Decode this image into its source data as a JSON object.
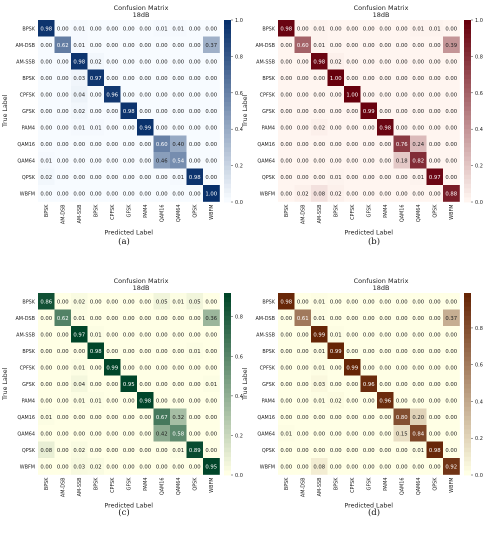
{
  "chart_data": [
    {
      "type": "heatmap",
      "panel_label": "(a)",
      "title": "Confusion Matrix",
      "subtitle": "18dB",
      "xlabel": "Predicted Label",
      "ylabel": "True Label",
      "colormap": "Blues",
      "low_color": "#f7fbff",
      "high_color": "#08306b",
      "colorbar_ticks": [
        "0.0",
        "0.2",
        "0.4",
        "0.6",
        "0.8",
        "1.0"
      ],
      "colorbar_range": [
        0,
        1
      ],
      "labels": [
        "BPSK",
        "AM-DSB",
        "AM-SSB",
        "BPSK",
        "CPFSK",
        "GFSK",
        "PAM4",
        "QAM16",
        "QAM64",
        "QPSK",
        "WBFM"
      ],
      "values": [
        [
          "0.98",
          "0.00",
          "0.01",
          "0.00",
          "0.00",
          "0.00",
          "0.00",
          "0.01",
          "0.01",
          "0.00",
          "0.00"
        ],
        [
          "0.00",
          "0.62",
          "0.01",
          "0.00",
          "0.00",
          "0.00",
          "0.00",
          "0.00",
          "0.00",
          "0.00",
          "0.37"
        ],
        [
          "0.00",
          "0.00",
          "0.98",
          "0.02",
          "0.00",
          "0.00",
          "0.00",
          "0.00",
          "0.00",
          "0.00",
          "0.00"
        ],
        [
          "0.00",
          "0.00",
          "0.03",
          "0.97",
          "0.00",
          "0.00",
          "0.00",
          "0.00",
          "0.00",
          "0.00",
          "0.00"
        ],
        [
          "0.00",
          "0.00",
          "0.04",
          "0.00",
          "0.96",
          "0.00",
          "0.00",
          "0.00",
          "0.00",
          "0.00",
          "0.00"
        ],
        [
          "0.00",
          "0.00",
          "0.02",
          "0.00",
          "0.00",
          "0.98",
          "0.00",
          "0.00",
          "0.00",
          "0.00",
          "0.00"
        ],
        [
          "0.00",
          "0.00",
          "0.01",
          "0.01",
          "0.00",
          "0.00",
          "0.99",
          "0.00",
          "0.00",
          "0.00",
          "0.00"
        ],
        [
          "0.00",
          "0.00",
          "0.00",
          "0.00",
          "0.00",
          "0.00",
          "0.00",
          "0.60",
          "0.40",
          "0.00",
          "0.00"
        ],
        [
          "0.01",
          "0.00",
          "0.00",
          "0.00",
          "0.00",
          "0.00",
          "0.00",
          "0.46",
          "0.54",
          "0.00",
          "0.00"
        ],
        [
          "0.02",
          "0.00",
          "0.00",
          "0.00",
          "0.00",
          "0.00",
          "0.00",
          "0.00",
          "0.01",
          "0.98",
          "0.00"
        ],
        [
          "0.00",
          "0.00",
          "0.00",
          "0.00",
          "0.00",
          "0.00",
          "0.00",
          "0.00",
          "0.00",
          "0.00",
          "1.00"
        ]
      ]
    },
    {
      "type": "heatmap",
      "panel_label": "(b)",
      "title": "Confusion Matrix",
      "subtitle": "18dB",
      "xlabel": "Predicted Label",
      "ylabel": "True Label",
      "colormap": "Reds",
      "low_color": "#fff5f0",
      "high_color": "#67000d",
      "colorbar_ticks": [
        "0.0",
        "0.2",
        "0.4",
        "0.6",
        "0.8",
        "1.0"
      ],
      "colorbar_range": [
        0,
        1
      ],
      "labels": [
        "BPSK",
        "AM-DSB",
        "AM-SSB",
        "BPSK",
        "CPFSK",
        "GFSK",
        "PAM4",
        "QAM16",
        "QAM64",
        "QPSK",
        "WBFM"
      ],
      "values": [
        [
          "0.98",
          "0.00",
          "0.01",
          "0.00",
          "0.00",
          "0.00",
          "0.00",
          "0.00",
          "0.01",
          "0.01",
          "0.00"
        ],
        [
          "0.00",
          "0.60",
          "0.01",
          "0.00",
          "0.00",
          "0.00",
          "0.00",
          "0.00",
          "0.00",
          "0.00",
          "0.39"
        ],
        [
          "0.00",
          "0.00",
          "0.98",
          "0.02",
          "0.00",
          "0.00",
          "0.00",
          "0.00",
          "0.00",
          "0.00",
          "0.00"
        ],
        [
          "0.00",
          "0.00",
          "0.00",
          "1.00",
          "0.00",
          "0.00",
          "0.00",
          "0.00",
          "0.00",
          "0.00",
          "0.00"
        ],
        [
          "0.00",
          "0.00",
          "0.00",
          "0.00",
          "1.00",
          "0.00",
          "0.00",
          "0.00",
          "0.00",
          "0.00",
          "0.00"
        ],
        [
          "0.00",
          "0.00",
          "0.00",
          "0.00",
          "0.00",
          "0.99",
          "0.00",
          "0.00",
          "0.00",
          "0.00",
          "0.00"
        ],
        [
          "0.00",
          "0.00",
          "0.02",
          "0.00",
          "0.00",
          "0.00",
          "0.98",
          "0.00",
          "0.00",
          "0.00",
          "0.00"
        ],
        [
          "0.00",
          "0.00",
          "0.00",
          "0.00",
          "0.00",
          "0.00",
          "0.00",
          "0.76",
          "0.24",
          "0.00",
          "0.00"
        ],
        [
          "0.00",
          "0.00",
          "0.00",
          "0.00",
          "0.00",
          "0.00",
          "0.00",
          "0.18",
          "0.82",
          "0.00",
          "0.00"
        ],
        [
          "0.00",
          "0.00",
          "0.00",
          "0.01",
          "0.00",
          "0.00",
          "0.00",
          "0.00",
          "0.01",
          "0.97",
          "0.00"
        ],
        [
          "0.00",
          "0.02",
          "0.08",
          "0.02",
          "0.00",
          "0.00",
          "0.00",
          "0.00",
          "0.00",
          "0.00",
          "0.88"
        ]
      ]
    },
    {
      "type": "heatmap",
      "panel_label": "(c)",
      "title": "Confusion Matrix",
      "subtitle": "18dB",
      "xlabel": "Predicted Label",
      "ylabel": "True Label",
      "colormap": "YlGn",
      "low_color": "#ffffe5",
      "high_color": "#004529",
      "colorbar_ticks": [
        "0.0",
        "0.2",
        "0.4",
        "0.6",
        "0.8"
      ],
      "colorbar_range": [
        0,
        0.92
      ],
      "labels": [
        "BPSK",
        "AM-DSB",
        "AM-SSB",
        "BPSK",
        "CPFSK",
        "GFSK",
        "PAM4",
        "QAM16",
        "QAM64",
        "QPSK",
        "WBFM"
      ],
      "values": [
        [
          "0.86",
          "0.00",
          "0.02",
          "0.00",
          "0.00",
          "0.00",
          "0.00",
          "0.05",
          "0.01",
          "0.05",
          "0.00"
        ],
        [
          "0.00",
          "0.62",
          "0.01",
          "0.00",
          "0.00",
          "0.00",
          "0.00",
          "0.00",
          "0.00",
          "0.00",
          "0.36"
        ],
        [
          "0.00",
          "0.00",
          "0.97",
          "0.01",
          "0.00",
          "0.00",
          "0.00",
          "0.00",
          "0.00",
          "0.00",
          "0.00"
        ],
        [
          "0.00",
          "0.00",
          "0.00",
          "0.98",
          "0.00",
          "0.00",
          "0.00",
          "0.00",
          "0.00",
          "0.01",
          "0.00"
        ],
        [
          "0.00",
          "0.00",
          "0.01",
          "0.00",
          "0.99",
          "0.00",
          "0.00",
          "0.00",
          "0.00",
          "0.00",
          "0.00"
        ],
        [
          "0.00",
          "0.00",
          "0.04",
          "0.00",
          "0.00",
          "0.95",
          "0.00",
          "0.00",
          "0.00",
          "0.00",
          "0.01"
        ],
        [
          "0.00",
          "0.00",
          "0.01",
          "0.01",
          "0.00",
          "0.00",
          "0.98",
          "0.00",
          "0.00",
          "0.00",
          "0.00"
        ],
        [
          "0.01",
          "0.00",
          "0.00",
          "0.00",
          "0.00",
          "0.00",
          "0.00",
          "0.67",
          "0.32",
          "0.00",
          "0.00"
        ],
        [
          "0.00",
          "0.00",
          "0.00",
          "0.00",
          "0.00",
          "0.00",
          "0.00",
          "0.42",
          "0.58",
          "0.00",
          "0.00"
        ],
        [
          "0.08",
          "0.00",
          "0.02",
          "0.00",
          "0.00",
          "0.00",
          "0.00",
          "0.00",
          "0.01",
          "0.89",
          "0.00"
        ],
        [
          "0.00",
          "0.00",
          "0.03",
          "0.02",
          "0.00",
          "0.00",
          "0.00",
          "0.00",
          "0.00",
          "0.00",
          "0.95"
        ]
      ]
    },
    {
      "type": "heatmap",
      "panel_label": "(d)",
      "title": "Confusion Matrix",
      "subtitle": "18dB",
      "xlabel": "Predicted Label",
      "ylabel": "True Label",
      "colormap": "YlOrBr",
      "low_color": "#ffffe5",
      "high_color": "#662506",
      "colorbar_ticks": [
        "0.0",
        "0.2",
        "0.4",
        "0.6",
        "0.8"
      ],
      "colorbar_range": [
        0,
        0.99
      ],
      "labels": [
        "BPSK",
        "AM-DSB",
        "AM-SSB",
        "BPSK",
        "CPFSK",
        "GFSK",
        "PAM4",
        "QAM16",
        "QAM64",
        "QPSK",
        "WBFM"
      ],
      "values": [
        [
          "0.98",
          "0.00",
          "0.01",
          "0.00",
          "0.00",
          "0.00",
          "0.00",
          "0.00",
          "0.00",
          "0.00",
          "0.00"
        ],
        [
          "0.00",
          "0.61",
          "0.01",
          "0.00",
          "0.00",
          "0.00",
          "0.00",
          "0.00",
          "0.00",
          "0.00",
          "0.37"
        ],
        [
          "0.00",
          "0.00",
          "0.99",
          "0.01",
          "0.00",
          "0.00",
          "0.00",
          "0.00",
          "0.00",
          "0.00",
          "0.00"
        ],
        [
          "0.00",
          "0.00",
          "0.01",
          "0.99",
          "0.00",
          "0.00",
          "0.00",
          "0.00",
          "0.00",
          "0.00",
          "0.00"
        ],
        [
          "0.00",
          "0.00",
          "0.01",
          "0.00",
          "0.99",
          "0.00",
          "0.00",
          "0.00",
          "0.00",
          "0.00",
          "0.00"
        ],
        [
          "0.00",
          "0.00",
          "0.03",
          "0.00",
          "0.00",
          "0.96",
          "0.00",
          "0.00",
          "0.00",
          "0.00",
          "0.00"
        ],
        [
          "0.00",
          "0.00",
          "0.01",
          "0.02",
          "0.00",
          "0.00",
          "0.96",
          "0.00",
          "0.00",
          "0.00",
          "0.00"
        ],
        [
          "0.00",
          "0.00",
          "0.00",
          "0.00",
          "0.00",
          "0.00",
          "0.00",
          "0.80",
          "0.20",
          "0.00",
          "0.00"
        ],
        [
          "0.01",
          "0.00",
          "0.00",
          "0.00",
          "0.00",
          "0.00",
          "0.00",
          "0.15",
          "0.84",
          "0.00",
          "0.00"
        ],
        [
          "0.00",
          "0.00",
          "0.00",
          "0.00",
          "0.00",
          "0.00",
          "0.00",
          "0.00",
          "0.01",
          "0.98",
          "0.00"
        ],
        [
          "0.00",
          "0.00",
          "0.08",
          "0.00",
          "0.00",
          "0.00",
          "0.00",
          "0.00",
          "0.00",
          "0.00",
          "0.92"
        ]
      ]
    }
  ]
}
